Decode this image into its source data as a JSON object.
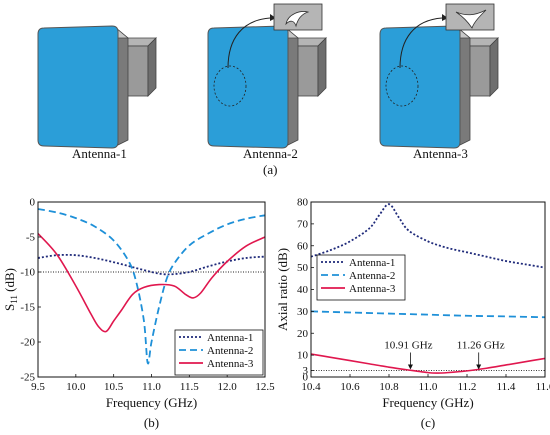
{
  "panel_a": {
    "caption": "(a)",
    "antennas": [
      {
        "label": "Antenna-1",
        "has_inset": false
      },
      {
        "label": "Antenna-2",
        "has_inset": true
      },
      {
        "label": "Antenna-3",
        "has_inset": true
      }
    ],
    "colors": {
      "patch": "#2b9ed8",
      "patch_edge": "#555555",
      "metal": "#9a9a9a",
      "metal_dark": "#6e6e6e"
    }
  },
  "chart_data": [
    {
      "type": "line",
      "caption": "(b)",
      "xlabel": "Frequency (GHz)",
      "ylabel": "S11 (dB)",
      "ylabel_main": "S",
      "ylabel_sub": "11",
      "ylabel_unit": "(dB)",
      "xlim": [
        9.5,
        12.5
      ],
      "ylim": [
        -25,
        0
      ],
      "xticks": [
        9.5,
        10.0,
        10.5,
        11.0,
        11.5,
        12.0,
        12.5
      ],
      "xtick_labels": [
        "9.5",
        "10.0",
        "10.5",
        "11.0",
        "11.5",
        "12.0",
        "12.5"
      ],
      "yticks": [
        -25,
        -20,
        -15,
        -10,
        -5,
        0
      ],
      "ytick_labels": [
        "-25",
        "-20",
        "-15",
        "-10",
        "-5",
        "0"
      ],
      "reference_line": -10,
      "legend_position": "bottom-right",
      "series": [
        {
          "name": "Antenna-1",
          "color": "#1f2a7a",
          "style": "dotted",
          "x": [
            9.5,
            9.75,
            10.0,
            10.25,
            10.5,
            10.75,
            11.0,
            11.15,
            11.3,
            11.5,
            11.75,
            12.0,
            12.25,
            12.5
          ],
          "y": [
            -8.0,
            -7.6,
            -7.6,
            -8.0,
            -8.6,
            -9.3,
            -10.0,
            -10.3,
            -10.3,
            -10.0,
            -9.2,
            -8.5,
            -8.0,
            -7.8
          ]
        },
        {
          "name": "Antenna-2",
          "color": "#1e90d8",
          "style": "dashed",
          "x": [
            9.5,
            9.75,
            10.0,
            10.25,
            10.5,
            10.7,
            10.8,
            10.9,
            10.95,
            11.0,
            11.1,
            11.2,
            11.3,
            11.5,
            11.75,
            12.0,
            12.25,
            12.5
          ],
          "y": [
            -1.0,
            -1.5,
            -2.3,
            -3.5,
            -5.5,
            -8.5,
            -11.5,
            -17.0,
            -23.0,
            -20.0,
            -15.0,
            -11.0,
            -8.8,
            -6.2,
            -4.5,
            -3.2,
            -2.4,
            -1.9
          ]
        },
        {
          "name": "Antenna-3",
          "color": "#e0174e",
          "style": "solid",
          "x": [
            9.5,
            9.75,
            10.0,
            10.2,
            10.3,
            10.4,
            10.5,
            10.6,
            10.75,
            10.9,
            11.1,
            11.3,
            11.45,
            11.55,
            11.65,
            11.8,
            12.0,
            12.25,
            12.5
          ],
          "y": [
            -4.5,
            -7.5,
            -12.0,
            -16.0,
            -17.8,
            -18.5,
            -17.0,
            -15.5,
            -13.2,
            -12.2,
            -11.8,
            -12.0,
            -13.2,
            -13.7,
            -13.0,
            -10.8,
            -8.5,
            -6.3,
            -5.0
          ]
        }
      ]
    },
    {
      "type": "line",
      "caption": "(c)",
      "xlabel": "Frequency (GHz)",
      "ylabel": "Axial ratio (dB)",
      "xlim": [
        10.4,
        11.6
      ],
      "ylim": [
        0,
        80
      ],
      "xticks": [
        10.4,
        10.6,
        10.8,
        11.0,
        11.2,
        11.4,
        11.6
      ],
      "xtick_labels": [
        "10.4",
        "10.6",
        "10.8",
        "11.0",
        "11.2",
        "11.4",
        "11.6"
      ],
      "yticks": [
        0,
        3,
        10,
        20,
        30,
        40,
        50,
        60,
        70,
        80
      ],
      "ytick_labels": [
        "0",
        "3",
        "10",
        "20",
        "30",
        "40",
        "50",
        "60",
        "70",
        "80"
      ],
      "reference_line": 3,
      "legend_position": "middle-left",
      "annotations": [
        {
          "text": "10.91 GHz",
          "x": 10.91,
          "y": 3
        },
        {
          "text": "11.26 GHz",
          "x": 11.26,
          "y": 3
        }
      ],
      "series": [
        {
          "name": "Antenna-1",
          "color": "#1f2a7a",
          "style": "dotted",
          "x": [
            10.4,
            10.5,
            10.6,
            10.7,
            10.75,
            10.8,
            10.85,
            10.9,
            11.0,
            11.1,
            11.2,
            11.3,
            11.4,
            11.5,
            11.6
          ],
          "y": [
            55,
            58,
            62,
            68,
            74,
            79,
            73,
            67,
            62,
            59,
            57,
            55,
            53,
            51.5,
            50
          ]
        },
        {
          "name": "Antenna-2",
          "color": "#1e90d8",
          "style": "dashed",
          "x": [
            10.4,
            10.6,
            10.8,
            11.0,
            11.2,
            11.4,
            11.6
          ],
          "y": [
            30,
            29.5,
            29,
            28.5,
            28,
            27.7,
            27.3
          ]
        },
        {
          "name": "Antenna-3",
          "color": "#e0174e",
          "style": "solid",
          "x": [
            10.4,
            10.5,
            10.6,
            10.7,
            10.8,
            10.9,
            11.0,
            11.05,
            11.1,
            11.2,
            11.3,
            11.4,
            11.5,
            11.6
          ],
          "y": [
            10.5,
            9.0,
            7.5,
            6.0,
            4.5,
            3.2,
            2.0,
            1.8,
            2.0,
            2.8,
            4.0,
            5.5,
            7.0,
            8.5
          ]
        }
      ]
    }
  ]
}
